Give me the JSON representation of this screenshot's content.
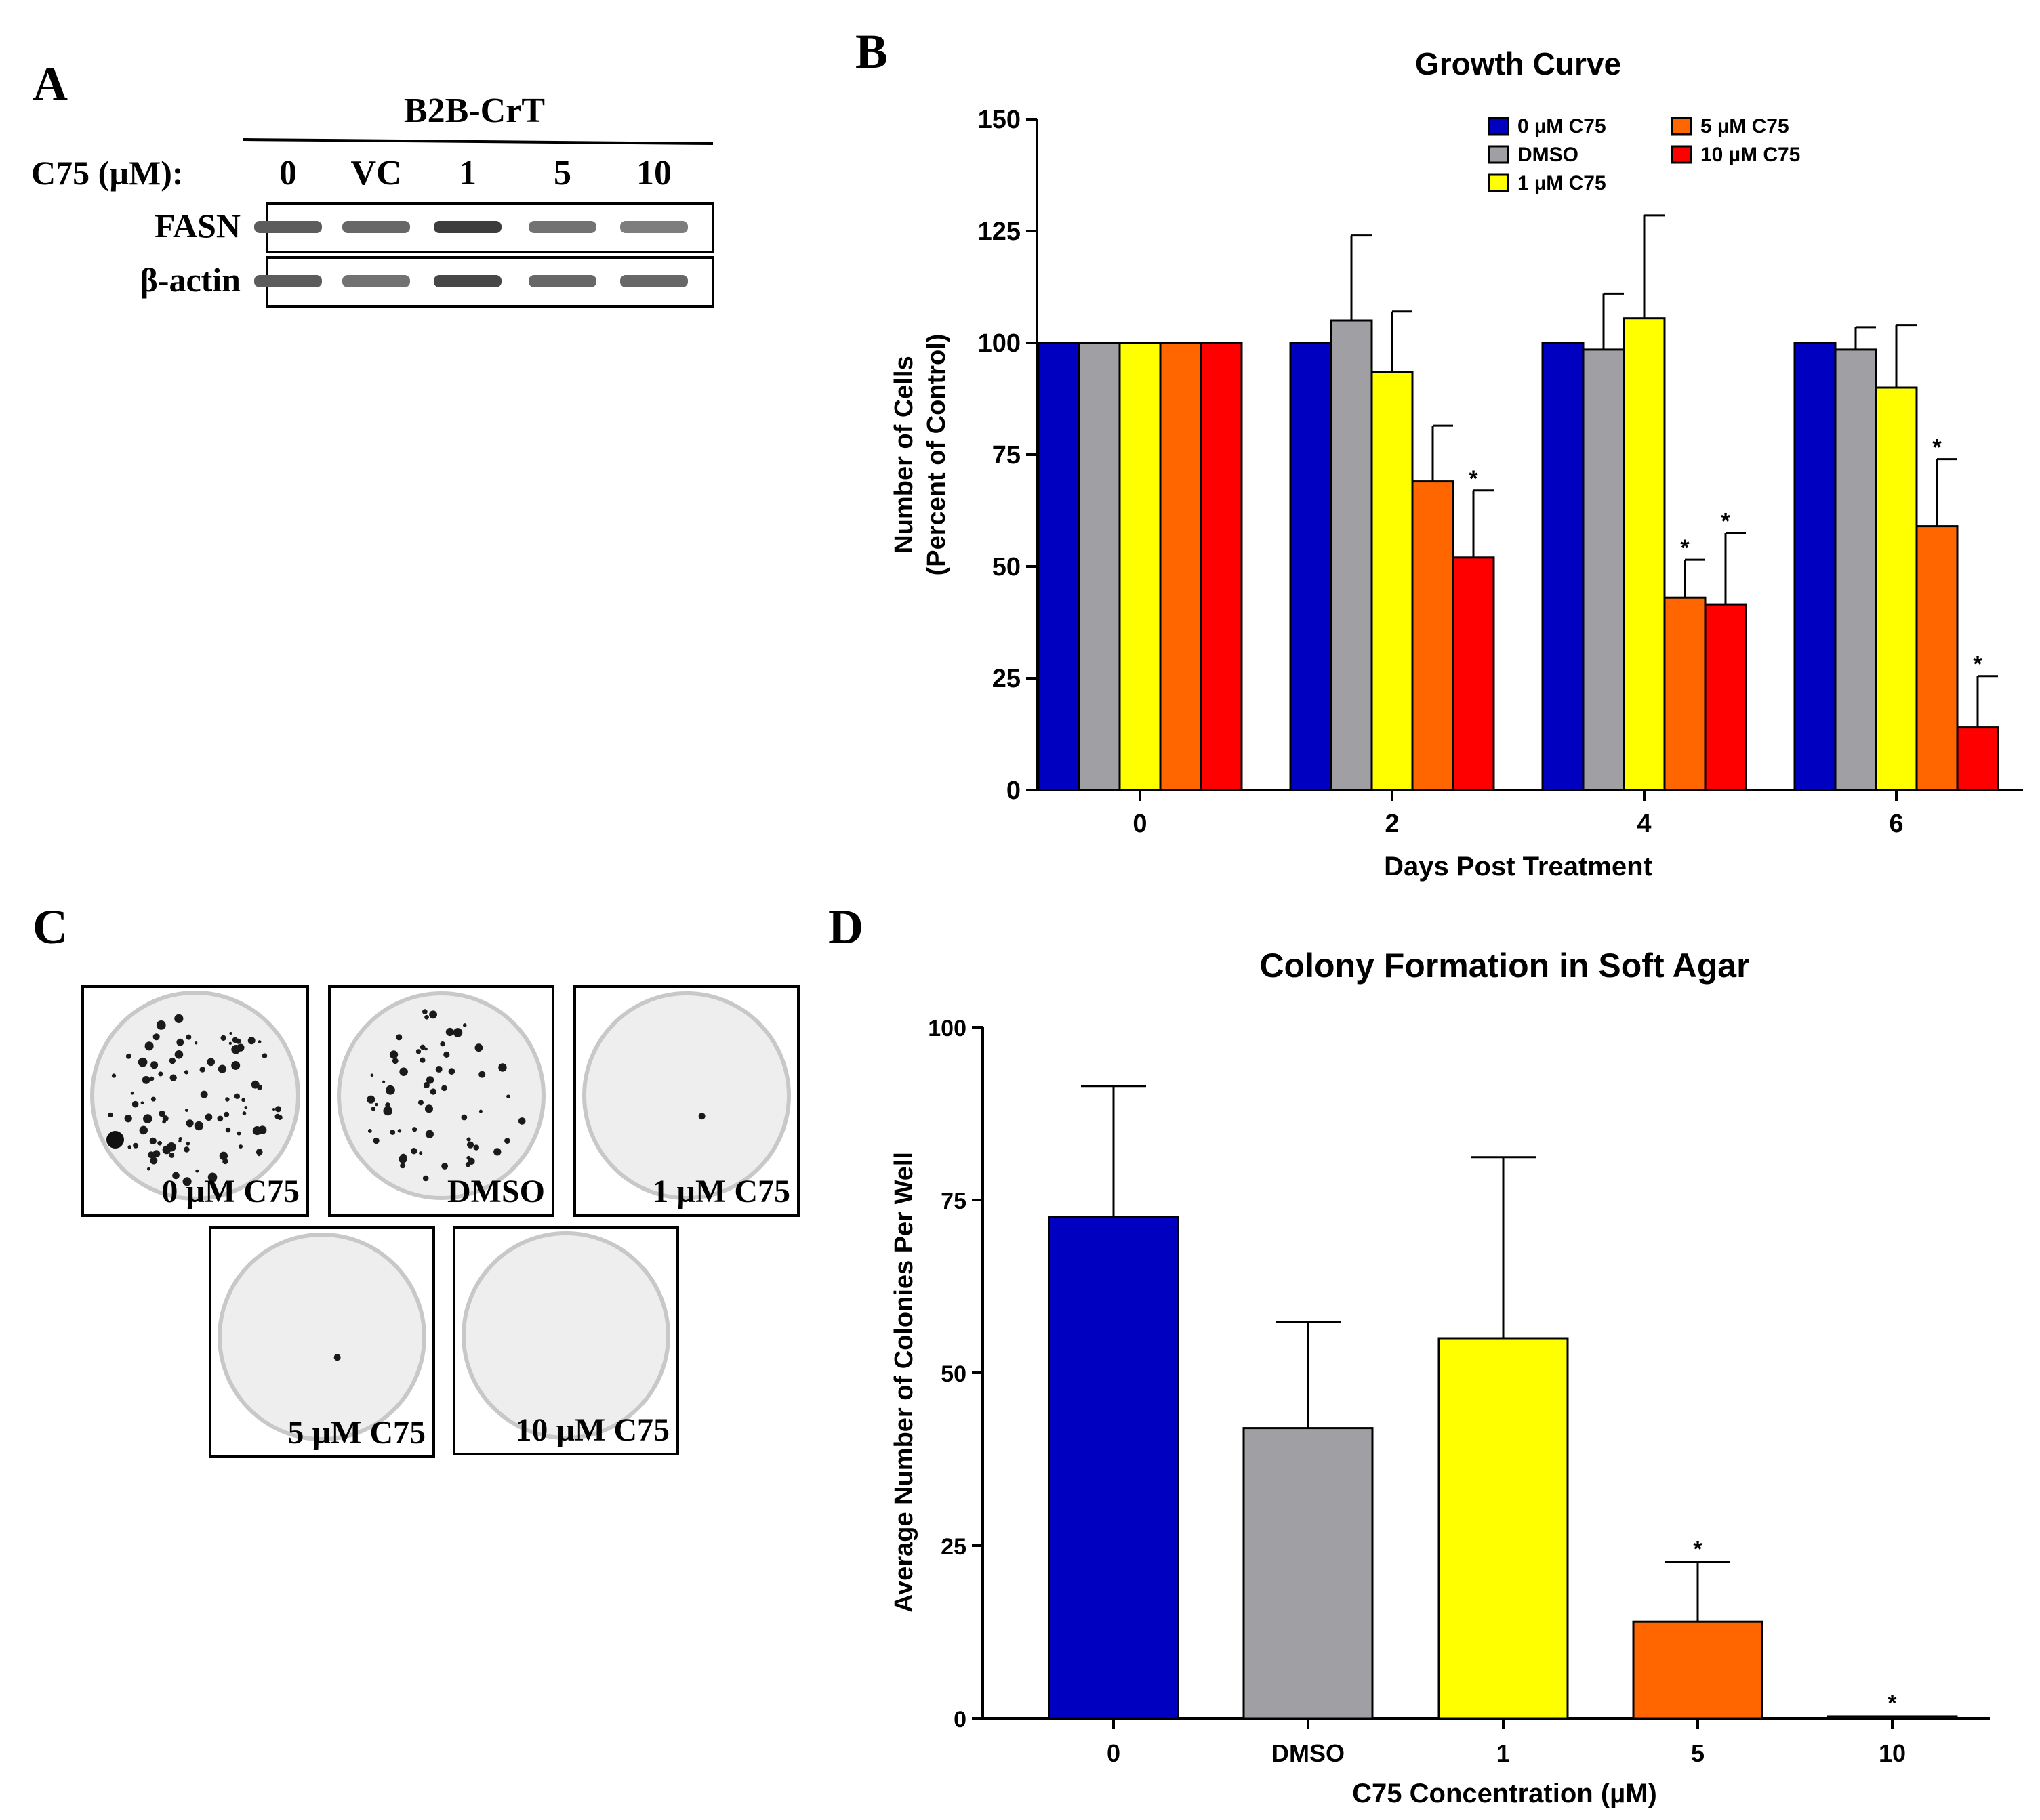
{
  "panels": {
    "a": "A",
    "b": "B",
    "c": "C",
    "d": "D"
  },
  "western_blot": {
    "cell_line": "B2B-CrT",
    "dose_label": "C75 (µM):",
    "lanes": [
      "0",
      "VC",
      "1",
      "5",
      "10"
    ],
    "rows": [
      {
        "label": "FASN",
        "intensity": [
          0.75,
          0.7,
          0.9,
          0.65,
          0.6
        ]
      },
      {
        "label": "β-actin",
        "intensity": [
          0.75,
          0.65,
          0.85,
          0.7,
          0.7
        ]
      }
    ]
  },
  "plates": [
    {
      "label": "0 µM C75",
      "colony_density": "high"
    },
    {
      "label": "DMSO",
      "colony_density": "medium"
    },
    {
      "label": "1 µM C75",
      "colony_density": "single"
    },
    {
      "label": "5 µM C75",
      "colony_density": "single"
    },
    {
      "label": "10 µM C75",
      "colony_density": "none"
    }
  ],
  "chart_data": [
    {
      "type": "bar",
      "title": "Growth Curve",
      "xlabel": "Days Post Treatment",
      "ylabel_lines": [
        "Number of Cells",
        "(Percent of Control)"
      ],
      "categories": [
        "0",
        "2",
        "4",
        "6"
      ],
      "ylim": [
        0,
        150
      ],
      "yticks": [
        0,
        25,
        50,
        75,
        100,
        125,
        150
      ],
      "legend_position": "top-right",
      "series": [
        {
          "name": "0 µM C75",
          "color": "#0000c0",
          "values": [
            100,
            100,
            100,
            100
          ],
          "errors": [
            0,
            0,
            0,
            0
          ],
          "significant": [
            false,
            false,
            false,
            false
          ]
        },
        {
          "name": "DMSO",
          "color": "#a0a0a4",
          "values": [
            100,
            105,
            98.5,
            98.5
          ],
          "errors": [
            0,
            19,
            12.5,
            5
          ],
          "significant": [
            false,
            false,
            false,
            false
          ]
        },
        {
          "name": "1 µM C75",
          "color": "#ffff00",
          "values": [
            100,
            93.5,
            105.5,
            90
          ],
          "errors": [
            0,
            13.5,
            23,
            14
          ],
          "significant": [
            false,
            false,
            false,
            false
          ]
        },
        {
          "name": "5 µM C75",
          "color": "#ff6600",
          "values": [
            100,
            69,
            43,
            59
          ],
          "errors": [
            0,
            12.5,
            8.5,
            15
          ],
          "significant": [
            false,
            false,
            true,
            true
          ]
        },
        {
          "name": "10 µM C75",
          "color": "#ff0000",
          "values": [
            100,
            52,
            41.5,
            14
          ],
          "errors": [
            0,
            15,
            16,
            11.5
          ],
          "significant": [
            false,
            true,
            true,
            true
          ]
        }
      ]
    },
    {
      "type": "bar",
      "title": "Colony Formation in Soft Agar",
      "xlabel": "C75 Concentration (µM)",
      "ylabel": "Average Number of Colonies Per  Well",
      "categories": [
        "0",
        "DMSO",
        "1",
        "5",
        "10"
      ],
      "ylim": [
        0,
        100
      ],
      "yticks": [
        0,
        25,
        50,
        75,
        100
      ],
      "values": [
        72.5,
        42,
        55,
        14,
        0.3
      ],
      "errors": [
        19,
        15.3,
        26.2,
        8.6,
        0
      ],
      "colors": [
        "#0000c0",
        "#a0a0a4",
        "#ffff00",
        "#ff6600",
        "#ff0000"
      ],
      "significant": [
        false,
        false,
        false,
        true,
        true
      ]
    }
  ]
}
